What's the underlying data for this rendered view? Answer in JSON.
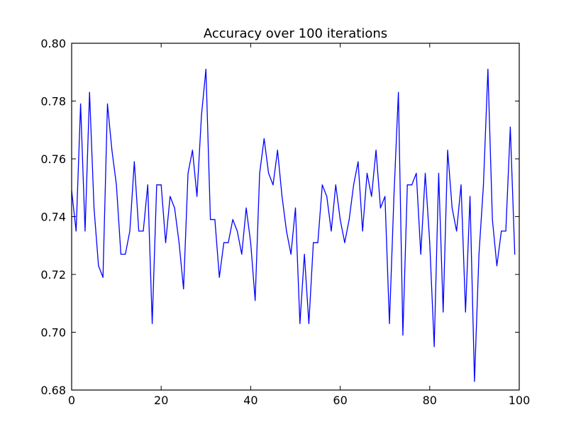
{
  "chart_data": {
    "type": "line",
    "title": "Accuracy over 100 iterations",
    "xlabel": "",
    "ylabel": "",
    "xlim": [
      0,
      100
    ],
    "ylim": [
      0.68,
      0.8
    ],
    "grid": false,
    "x_ticks": [
      0,
      20,
      40,
      60,
      80,
      100
    ],
    "x_tick_labels": [
      "0",
      "20",
      "40",
      "60",
      "80",
      "100"
    ],
    "y_ticks": [
      0.68,
      0.7,
      0.72,
      0.74,
      0.76,
      0.78,
      0.8
    ],
    "y_tick_labels": [
      "0.68",
      "0.70",
      "0.72",
      "0.74",
      "0.76",
      "0.78",
      "0.80"
    ],
    "line_color": "#0000ff",
    "series": [
      {
        "x": [
          0,
          1,
          2,
          3,
          4,
          5,
          6,
          7,
          8,
          9,
          10,
          11,
          12,
          13,
          14,
          15,
          16,
          17,
          18,
          19,
          20,
          21,
          22,
          23,
          24,
          25,
          26,
          27,
          28,
          29,
          30,
          31,
          32,
          33,
          34,
          35,
          36,
          37,
          38,
          39,
          40,
          41,
          42,
          43,
          44,
          45,
          46,
          47,
          48,
          49,
          50,
          51,
          52,
          53,
          54,
          55,
          56,
          57,
          58,
          59,
          60,
          61,
          62,
          63,
          64,
          65,
          66,
          67,
          68,
          69,
          70,
          71,
          72,
          73,
          74,
          75,
          76,
          77,
          78,
          79,
          80,
          81,
          82,
          83,
          84,
          85,
          86,
          87,
          88,
          89,
          90,
          91,
          92,
          93,
          94,
          95,
          96,
          97,
          98,
          99
        ],
        "values": [
          0.749,
          0.735,
          0.779,
          0.735,
          0.783,
          0.743,
          0.723,
          0.719,
          0.779,
          0.763,
          0.751,
          0.727,
          0.727,
          0.735,
          0.759,
          0.735,
          0.735,
          0.751,
          0.703,
          0.751,
          0.751,
          0.731,
          0.747,
          0.743,
          0.731,
          0.715,
          0.755,
          0.763,
          0.747,
          0.775,
          0.791,
          0.739,
          0.739,
          0.719,
          0.731,
          0.731,
          0.739,
          0.735,
          0.727,
          0.743,
          0.731,
          0.711,
          0.755,
          0.767,
          0.755,
          0.751,
          0.763,
          0.747,
          0.735,
          0.727,
          0.743,
          0.703,
          0.727,
          0.703,
          0.731,
          0.731,
          0.751,
          0.747,
          0.735,
          0.751,
          0.739,
          0.731,
          0.739,
          0.751,
          0.759,
          0.735,
          0.755,
          0.747,
          0.763,
          0.743,
          0.747,
          0.703,
          0.747,
          0.783,
          0.699,
          0.751,
          0.751,
          0.755,
          0.727,
          0.755,
          0.731,
          0.695,
          0.755,
          0.707,
          0.763,
          0.743,
          0.735,
          0.751,
          0.707,
          0.747,
          0.683,
          0.727,
          0.751,
          0.791,
          0.739,
          0.723,
          0.735,
          0.735,
          0.771,
          0.727
        ]
      }
    ]
  }
}
